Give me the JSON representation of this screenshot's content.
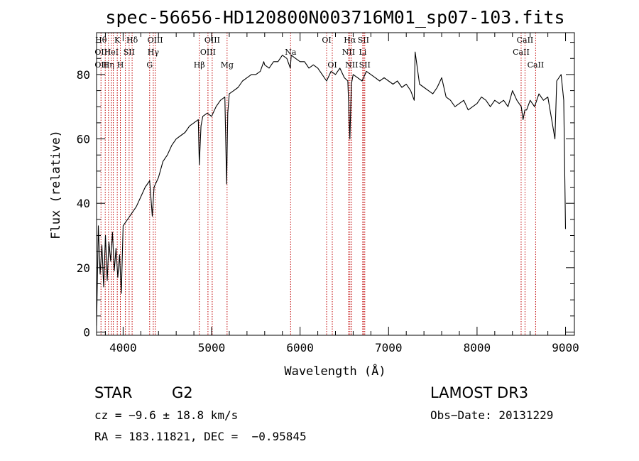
{
  "chart_data": {
    "type": "line",
    "title": "spec-56656-HD120800N003716M01_sp07-103.fits",
    "xlabel": "Wavelength (Å)",
    "ylabel": "Flux (relative)",
    "xlim": [
      3700,
      9100
    ],
    "ylim": [
      -1,
      93
    ],
    "x_ticks": [
      4000,
      5000,
      6000,
      7000,
      8000,
      9000
    ],
    "y_ticks": [
      0,
      20,
      40,
      60,
      80
    ],
    "grid": false,
    "series": [
      {
        "x": [
          3700,
          3720,
          3740,
          3760,
          3780,
          3800,
          3820,
          3840,
          3860,
          3880,
          3900,
          3920,
          3940,
          3960,
          3980,
          4000,
          4050,
          4100,
          4150,
          4200,
          4250,
          4300,
          4330,
          4350,
          4400,
          4450,
          4500,
          4550,
          4600,
          4650,
          4700,
          4750,
          4800,
          4850,
          4861,
          4880,
          4900,
          4950,
          5000,
          5050,
          5100,
          5150,
          5170,
          5183,
          5200,
          5250,
          5300,
          5350,
          5400,
          5450,
          5500,
          5550,
          5590,
          5600,
          5650,
          5700,
          5750,
          5800,
          5850,
          5890,
          5900,
          5950,
          6000,
          6050,
          6100,
          6150,
          6200,
          6250,
          6300,
          6350,
          6400,
          6450,
          6500,
          6540,
          6563,
          6580,
          6600,
          6650,
          6700,
          6750,
          6800,
          6850,
          6900,
          6950,
          7000,
          7050,
          7100,
          7150,
          7200,
          7250,
          7290,
          7300,
          7350,
          7400,
          7450,
          7500,
          7550,
          7600,
          7650,
          7700,
          7750,
          7800,
          7850,
          7900,
          7950,
          8000,
          8050,
          8100,
          8150,
          8200,
          8250,
          8300,
          8350,
          8400,
          8450,
          8500,
          8520,
          8540,
          8560,
          8600,
          8650,
          8700,
          8750,
          8800,
          8850,
          8880,
          8900,
          8950,
          8980,
          9000
        ],
        "y": [
          2,
          33,
          18,
          27,
          14,
          30,
          16,
          28,
          22,
          31,
          19,
          26,
          17,
          24,
          12,
          33,
          35,
          37,
          39,
          42,
          45,
          47,
          36,
          45,
          48,
          53,
          55,
          58,
          60,
          61,
          62,
          64,
          65,
          66,
          52,
          64,
          67,
          68,
          67,
          70,
          72,
          73,
          46,
          68,
          74,
          75,
          76,
          78,
          79,
          80,
          80,
          81,
          84,
          83,
          82,
          84,
          84,
          86,
          85,
          82,
          86,
          85,
          84,
          84,
          82,
          83,
          82,
          80,
          78,
          81,
          80,
          82,
          79,
          78,
          60,
          77,
          80,
          79,
          78,
          81,
          80,
          79,
          78,
          79,
          78,
          77,
          78,
          76,
          77,
          75,
          72,
          87,
          77,
          76,
          75,
          74,
          76,
          79,
          73,
          72,
          70,
          71,
          72,
          69,
          70,
          71,
          73,
          72,
          70,
          72,
          71,
          72,
          70,
          75,
          72,
          70,
          66,
          69,
          69,
          72,
          70,
          74,
          72,
          73,
          65,
          60,
          78,
          80,
          72,
          32
        ]
      }
    ],
    "lines": [
      {
        "x": 3750,
        "top": "Hθ",
        "mid": "OII",
        "bot": "OII"
      },
      {
        "x": 3798,
        "mid": "",
        "bot": ""
      },
      {
        "x": 3835,
        "mid": "",
        "bot": "Hη"
      },
      {
        "x": 3868,
        "mid": "HeI",
        "bot": ""
      },
      {
        "x": 3889,
        "top": "",
        "bot": ""
      },
      {
        "x": 3934,
        "top": "K"
      },
      {
        "x": 3969,
        "bot": "H"
      },
      {
        "x": 4026,
        "mid": ""
      },
      {
        "x": 4068,
        "mid": "SII"
      },
      {
        "x": 4102,
        "top": "Hδ"
      },
      {
        "x": 4300,
        "bot": "G"
      },
      {
        "x": 4341,
        "mid": "Hγ"
      },
      {
        "x": 4363,
        "top": "OIII"
      },
      {
        "x": 4861,
        "bot": "Hβ"
      },
      {
        "x": 4959,
        "mid": "OIII"
      },
      {
        "x": 5007,
        "top": "OIII"
      },
      {
        "x": 5175,
        "bot": "Mg"
      },
      {
        "x": 5893,
        "mid": "Na"
      },
      {
        "x": 6300,
        "top": "OI"
      },
      {
        "x": 6364,
        "bot": "OI"
      },
      {
        "x": 6548,
        "mid": "NII"
      },
      {
        "x": 6563,
        "top": "Hα"
      },
      {
        "x": 6583,
        "bot": "NII"
      },
      {
        "x": 6708,
        "mid": "Li"
      },
      {
        "x": 6716,
        "top": "SII"
      },
      {
        "x": 6731,
        "bot": "SII"
      },
      {
        "x": 8498,
        "mid": "CaII"
      },
      {
        "x": 8542,
        "top": "CaII"
      },
      {
        "x": 8662,
        "bot": "CaII"
      }
    ]
  },
  "info": {
    "object_class": "STAR",
    "subclass": "G2",
    "survey": "LAMOST DR3",
    "cz": "cz = −9.6 ± 18.8 km/s",
    "obs_date": "Obs−Date: 20131229",
    "coords": "RA = 183.11821, DEC =  −0.95845"
  },
  "colors": {
    "line_marker": "#c00000",
    "spectrum": "#000000",
    "axes": "#000000"
  }
}
